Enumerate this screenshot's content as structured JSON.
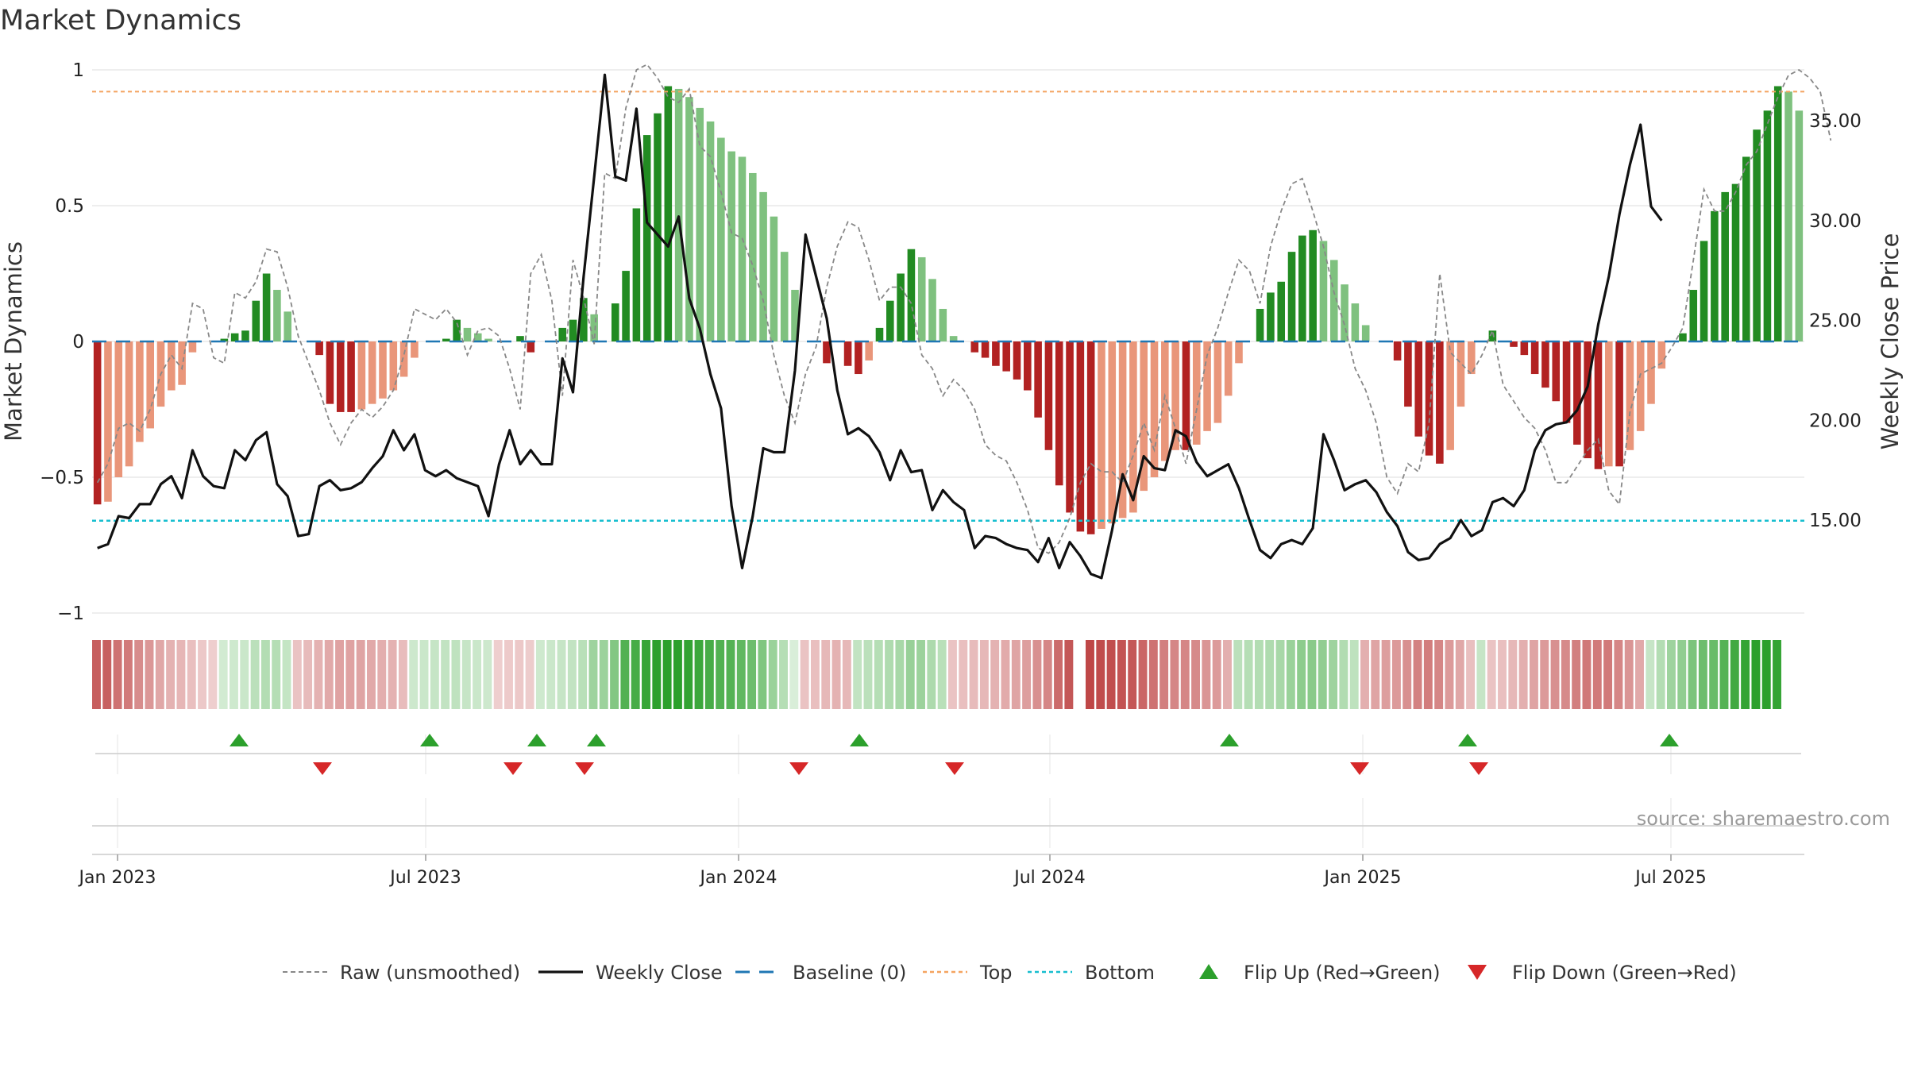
{
  "title": "Market Dynamics",
  "chart_data": {
    "type": "bar",
    "title": "Market Dynamics",
    "ylabel": "Market Dynamics",
    "y2label": "Weekly Close Price",
    "ylim": [
      -1,
      1
    ],
    "y2lim": [
      11,
      38.4
    ],
    "yticks": [
      "1",
      "0.5",
      "0",
      "−0.5",
      "−1"
    ],
    "y2ticks": [
      "35.00",
      "30.00",
      "25.00",
      "20.00",
      "15.00"
    ],
    "xticks": [
      "Jan 2023",
      "Jul 2023",
      "Jan 2024",
      "Jul 2024",
      "Jan 2025",
      "Jul 2025"
    ],
    "top_level": 0.92,
    "bottom_level": -0.66,
    "colors": {
      "strong_green": "#228B22",
      "light_green": "#7FC17F",
      "strong_red": "#B22222",
      "light_red": "#E9967A",
      "raw": "#888888",
      "close": "#111111",
      "baseline": "#1F77B4",
      "top": "#F4A460",
      "bottom": "#17BECF",
      "flip_up": "#2CA02C",
      "flip_down": "#D62728"
    },
    "bars": [
      -0.6,
      -0.59,
      -0.5,
      -0.46,
      -0.37,
      -0.32,
      -0.24,
      -0.18,
      -0.16,
      -0.04,
      0,
      0,
      0.01,
      0.03,
      0.04,
      0.15,
      0.25,
      0.19,
      0.11,
      0,
      0,
      -0.05,
      -0.23,
      -0.26,
      -0.26,
      -0.25,
      -0.23,
      -0.21,
      -0.18,
      -0.13,
      -0.06,
      0,
      0,
      0.01,
      0.08,
      0.05,
      0.03,
      0.01,
      0,
      0,
      0.02,
      -0.04,
      0,
      0,
      0.05,
      0.08,
      0.16,
      0.1,
      0,
      0.14,
      0.26,
      0.49,
      0.76,
      0.84,
      0.94,
      0.93,
      0.9,
      0.86,
      0.81,
      0.75,
      0.7,
      0.68,
      0.62,
      0.55,
      0.46,
      0.33,
      0.19,
      0,
      0,
      -0.08,
      0,
      -0.09,
      -0.12,
      -0.07,
      0.05,
      0.15,
      0.25,
      0.34,
      0.31,
      0.23,
      0.12,
      0.02,
      0,
      -0.04,
      -0.06,
      -0.09,
      -0.11,
      -0.14,
      -0.18,
      -0.28,
      -0.4,
      -0.53,
      -0.63,
      -0.7,
      -0.71,
      -0.69,
      -0.67,
      -0.65,
      -0.63,
      -0.55,
      -0.5,
      -0.44,
      -0.4,
      -0.4,
      -0.38,
      -0.33,
      -0.3,
      -0.2,
      -0.08,
      0,
      0.12,
      0.18,
      0.22,
      0.33,
      0.39,
      0.41,
      0.37,
      0.3,
      0.21,
      0.14,
      0.06,
      0,
      0,
      -0.07,
      -0.24,
      -0.35,
      -0.42,
      -0.45,
      -0.4,
      -0.24,
      -0.12,
      0,
      0.04,
      0,
      -0.02,
      -0.05,
      -0.12,
      -0.17,
      -0.22,
      -0.3,
      -0.38,
      -0.43,
      -0.47,
      -0.46,
      -0.46,
      -0.4,
      -0.33,
      -0.23,
      -0.1,
      0,
      0.03,
      0.19,
      0.37,
      0.48,
      0.55,
      0.58,
      0.68,
      0.78,
      0.85,
      0.94,
      0.92,
      0.85
    ],
    "raw": [
      -0.52,
      -0.45,
      -0.32,
      -0.3,
      -0.33,
      -0.25,
      -0.12,
      -0.05,
      -0.1,
      0.14,
      0.12,
      -0.06,
      -0.08,
      0.18,
      0.16,
      0.22,
      0.34,
      0.33,
      0.2,
      0.02,
      -0.08,
      -0.18,
      -0.3,
      -0.38,
      -0.3,
      -0.25,
      -0.28,
      -0.24,
      -0.18,
      -0.05,
      0.12,
      0.1,
      0.08,
      0.12,
      0.07,
      -0.05,
      0.04,
      0.05,
      0.02,
      -0.1,
      -0.25,
      0.25,
      0.32,
      0.15,
      -0.2,
      0.3,
      0.16,
      -0.01,
      0.62,
      0.6,
      0.86,
      1.0,
      1.02,
      0.97,
      0.9,
      0.88,
      0.93,
      0.72,
      0.68,
      0.55,
      0.4,
      0.38,
      0.28,
      0.15,
      -0.05,
      -0.2,
      -0.3,
      -0.12,
      -0.02,
      0.2,
      0.35,
      0.44,
      0.42,
      0.3,
      0.15,
      0.2,
      0.2,
      0.14,
      -0.05,
      -0.1,
      -0.2,
      -0.14,
      -0.18,
      -0.25,
      -0.38,
      -0.42,
      -0.44,
      -0.52,
      -0.62,
      -0.76,
      -0.78,
      -0.74,
      -0.65,
      -0.52,
      -0.45,
      -0.48,
      -0.48,
      -0.52,
      -0.42,
      -0.3,
      -0.4,
      -0.2,
      -0.32,
      -0.45,
      -0.25,
      -0.05,
      0.05,
      0.18,
      0.3,
      0.26,
      0.14,
      0.35,
      0.48,
      0.58,
      0.6,
      0.48,
      0.35,
      0.18,
      0.06,
      -0.1,
      -0.18,
      -0.3,
      -0.5,
      -0.56,
      -0.45,
      -0.48,
      -0.3,
      0.25,
      -0.04,
      -0.08,
      -0.12,
      -0.05,
      0.04,
      -0.16,
      -0.22,
      -0.28,
      -0.32,
      -0.4,
      -0.52,
      -0.52,
      -0.46,
      -0.4,
      -0.36,
      -0.55,
      -0.6,
      -0.26,
      -0.12,
      -0.1,
      -0.08,
      -0.02,
      0.05,
      0.3,
      0.56,
      0.48,
      0.48,
      0.55,
      0.65,
      0.7,
      0.8,
      0.9,
      0.98,
      1.0,
      0.97,
      0.92,
      0.74
    ],
    "close": [
      13.6,
      13.8,
      15.2,
      15.1,
      15.8,
      15.8,
      16.8,
      17.2,
      16.1,
      18.5,
      17.2,
      16.7,
      16.6,
      18.5,
      18.0,
      19.0,
      19.4,
      16.8,
      16.2,
      14.2,
      14.3,
      16.7,
      17.0,
      16.5,
      16.6,
      16.9,
      17.6,
      18.2,
      19.5,
      18.5,
      19.3,
      17.5,
      17.2,
      17.5,
      17.1,
      16.9,
      16.7,
      15.2,
      17.8,
      19.5,
      17.8,
      18.5,
      17.8,
      17.8,
      23.1,
      21.4,
      27.2,
      32.2,
      37.3,
      32.2,
      32.0,
      35.6,
      29.9,
      29.3,
      28.7,
      30.2,
      26.1,
      24.6,
      22.3,
      20.6,
      15.7,
      12.6,
      15.2,
      18.6,
      18.4,
      18.4,
      22.5,
      29.3,
      27.2,
      25.1,
      21.5,
      19.3,
      19.6,
      19.2,
      18.4,
      17.0,
      18.5,
      17.4,
      17.5,
      15.5,
      16.5,
      15.9,
      15.5,
      13.6,
      14.2,
      14.1,
      13.8,
      13.6,
      13.5,
      12.9,
      14.1,
      12.6,
      13.9,
      13.2,
      12.3,
      12.1,
      14.5,
      17.3,
      16.0,
      18.2,
      17.6,
      17.5,
      19.5,
      19.2,
      17.9,
      17.2,
      17.5,
      17.8,
      16.6,
      15.0,
      13.5,
      13.1,
      13.8,
      14.0,
      13.8,
      14.6,
      19.3,
      18.0,
      16.5,
      16.8,
      17.0,
      16.4,
      15.4,
      14.7,
      13.4,
      13.0,
      13.1,
      13.8,
      14.1,
      15.0,
      14.2,
      14.5,
      15.9,
      16.1,
      15.7,
      16.5,
      18.5,
      19.5,
      19.8,
      19.9,
      20.5,
      21.7,
      24.8,
      27.2,
      30.3,
      32.8,
      34.8,
      30.7,
      30.0
    ],
    "regime": [
      -0.6,
      -0.59,
      -0.5,
      -0.46,
      -0.37,
      -0.32,
      -0.24,
      -0.18,
      -0.16,
      -0.12,
      -0.08,
      -0.04,
      0.03,
      0.05,
      0.08,
      0.15,
      0.2,
      0.19,
      0.11,
      -0.1,
      -0.14,
      -0.18,
      -0.23,
      -0.26,
      -0.26,
      -0.25,
      -0.23,
      -0.21,
      -0.18,
      -0.13,
      0.06,
      0.08,
      0.1,
      0.12,
      0.13,
      0.1,
      0.08,
      0.06,
      -0.04,
      -0.06,
      -0.08,
      -0.05,
      0.05,
      0.08,
      0.1,
      0.12,
      0.16,
      0.3,
      0.32,
      0.45,
      0.7,
      0.76,
      0.84,
      0.94,
      0.93,
      0.9,
      0.86,
      0.81,
      0.75,
      0.7,
      0.68,
      0.62,
      0.55,
      0.46,
      0.33,
      0.19,
      0,
      -0.1,
      -0.12,
      -0.15,
      -0.18,
      -0.15,
      0.12,
      0.15,
      0.18,
      0.22,
      0.25,
      0.34,
      0.31,
      0.23,
      0.16,
      -0.1,
      -0.12,
      -0.14,
      -0.15,
      -0.18,
      -0.22,
      -0.25,
      -0.28,
      -0.35,
      -0.4,
      -0.53,
      -0.63,
      -0.7,
      -0.71,
      -0.69,
      -0.67,
      -0.65,
      -0.63,
      -0.55,
      -0.5,
      -0.44,
      -0.4,
      -0.4,
      -0.38,
      -0.33,
      -0.3,
      -0.2,
      0.15,
      0.18,
      0.2,
      0.22,
      0.25,
      0.33,
      0.39,
      0.41,
      0.37,
      0.3,
      0.21,
      0.14,
      -0.2,
      -0.25,
      -0.28,
      -0.3,
      -0.35,
      -0.42,
      -0.45,
      -0.4,
      -0.3,
      -0.24,
      -0.12,
      0.1,
      -0.1,
      -0.12,
      -0.15,
      -0.2,
      -0.25,
      -0.3,
      -0.35,
      -0.38,
      -0.43,
      -0.47,
      -0.46,
      -0.46,
      -0.4,
      -0.33,
      -0.23,
      0.1,
      0.2,
      0.3,
      0.37,
      0.48,
      0.55,
      0.58,
      0.68,
      0.78,
      0.85,
      0.94,
      0.92,
      0.85
    ],
    "flip_up_weeks": [
      15,
      35,
      47,
      52,
      80,
      111,
      131,
      157
    ],
    "flip_down_weeks": [
      23,
      41,
      47,
      75,
      91,
      128,
      138
    ],
    "legend": [
      "Raw (unsmoothed)",
      "Weekly Close",
      "Baseline (0)",
      "Top",
      "Bottom",
      "Flip Up (Red→Green)",
      "Flip Down (Green→Red)"
    ]
  },
  "source": "source: sharemaestro.com"
}
